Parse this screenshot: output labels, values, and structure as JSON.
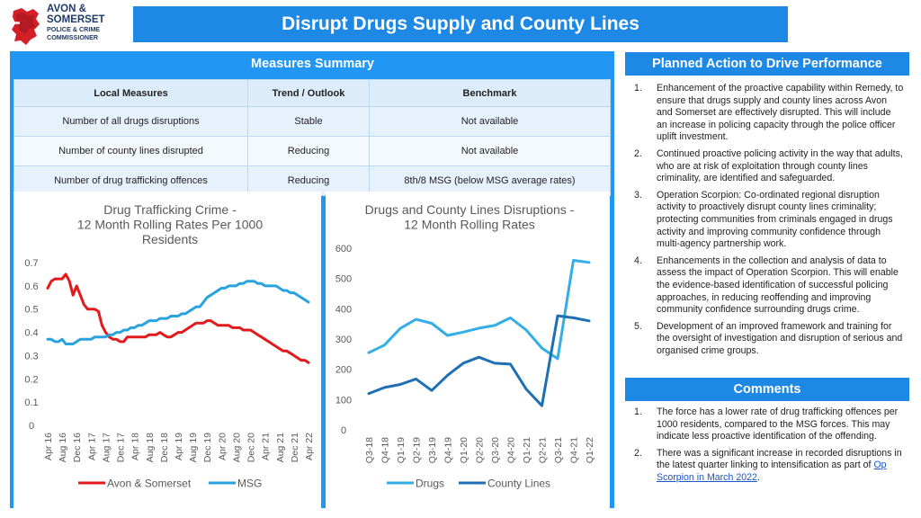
{
  "logo": {
    "line1": "AVON &",
    "line2": "SOMERSET",
    "line3": "POLICE & CRIME",
    "line4": "COMMISSIONER"
  },
  "title": "Disrupt Drugs Supply and County Lines",
  "measures": {
    "header": "Measures Summary",
    "columns": [
      "Local Measures",
      "Trend / Outlook",
      "Benchmark"
    ],
    "rows": [
      [
        "Number of all drugs disruptions",
        "Stable",
        "Not available"
      ],
      [
        "Number of county lines disrupted",
        "Reducing",
        "Not available"
      ],
      [
        "Number of drug trafficking offences",
        "Reducing",
        "8th/8 MSG (below MSG average rates)"
      ]
    ]
  },
  "planned": {
    "header": "Planned Action to Drive Performance",
    "items": [
      {
        "num": "1.",
        "text": "Enhancement of the proactive capability within Remedy, to ensure that drugs supply and county lines across Avon and Somerset are effectively disrupted. This will include an increase in policing capacity through the police officer uplift investment."
      },
      {
        "num": "2.",
        "text": "Continued proactive policing activity in the way that adults, who are at risk of exploitation through county lines criminality, are identified and safeguarded."
      },
      {
        "num": "3.",
        "text": "Operation Scorpion: Co-ordinated regional disruption activity to proactively disrupt county lines criminality; protecting communities from criminals engaged in drugs activity and improving community confidence through multi-agency partnership work."
      },
      {
        "num": "4.",
        "text": "Enhancements in the collection and analysis of data to assess the impact of Operation Scorpion. This will enable the evidence-based identification of successful policing approaches, in reducing reoffending and improving community confidence surrounding drugs crime."
      },
      {
        "num": "5.",
        "text": "Development of an improved framework and training for the oversight of investigation and disruption of serious and organised crime groups."
      }
    ]
  },
  "comments": {
    "header": "Comments",
    "item1": {
      "num": "1.",
      "text": "The force has a lower rate of drug trafficking offences per 1000 residents, compared to the MSG forces. This may indicate less proactive identification of the offending."
    },
    "item2": {
      "num": "2.",
      "text_before": "There was a significant increase in recorded disruptions in the latest quarter linking to intensification as part of ",
      "link": "Op Scorpion in March 2022",
      "text_after": "."
    }
  },
  "colors": {
    "title_bg": "#1e88e5",
    "panel_bg": "#2196f3",
    "avon_line": "#e31a1c",
    "msg_line": "#29a3e0",
    "drugs_line": "#33aee6",
    "county_line": "#1f6fb5"
  },
  "chart_data": [
    {
      "type": "line",
      "title": "Drug Trafficking Crime - 12 Month Rolling Rates Per 1000 Residents",
      "title_lines": [
        "Drug Trafficking Crime -",
        "12 Month Rolling Rates Per 1000",
        "Residents"
      ],
      "ylim": [
        0,
        0.7
      ],
      "yticks": [
        0,
        0.1,
        0.2,
        0.3,
        0.4,
        0.5,
        0.6,
        0.7
      ],
      "ytick_labels": [
        "0",
        "0.1",
        "0.2",
        "0.3",
        "0.4",
        "0.5",
        "0.6",
        "0.7"
      ],
      "xtick_labels": [
        "Apr 16",
        "Aug 16",
        "Dec 16",
        "Apr 17",
        "Aug 17",
        "Dec 17",
        "Apr 18",
        "Aug 18",
        "Dec 18",
        "Apr 19",
        "Aug 19",
        "Dec 19",
        "Apr 20",
        "Aug 20",
        "Dec 20",
        "Apr 21",
        "Aug 21",
        "Dec 21",
        "Apr 22"
      ],
      "x_months": 73,
      "legend_position": "bottom",
      "series": [
        {
          "name": "Avon & Somerset",
          "color": "#e31a1c",
          "values": [
            0.59,
            0.62,
            0.63,
            0.63,
            0.63,
            0.65,
            0.62,
            0.56,
            0.6,
            0.56,
            0.52,
            0.5,
            0.5,
            0.5,
            0.49,
            0.43,
            0.4,
            0.38,
            0.37,
            0.37,
            0.36,
            0.36,
            0.38,
            0.38,
            0.38,
            0.38,
            0.38,
            0.38,
            0.39,
            0.39,
            0.39,
            0.4,
            0.39,
            0.38,
            0.38,
            0.39,
            0.4,
            0.4,
            0.41,
            0.42,
            0.43,
            0.44,
            0.44,
            0.44,
            0.45,
            0.45,
            0.44,
            0.43,
            0.43,
            0.43,
            0.43,
            0.42,
            0.42,
            0.42,
            0.41,
            0.41,
            0.41,
            0.4,
            0.39,
            0.38,
            0.37,
            0.36,
            0.35,
            0.34,
            0.33,
            0.32,
            0.32,
            0.31,
            0.3,
            0.29,
            0.28,
            0.28,
            0.27
          ]
        },
        {
          "name": "MSG",
          "color": "#29a3e0",
          "values": [
            0.37,
            0.37,
            0.36,
            0.36,
            0.37,
            0.35,
            0.35,
            0.35,
            0.36,
            0.37,
            0.37,
            0.37,
            0.37,
            0.38,
            0.38,
            0.38,
            0.38,
            0.39,
            0.39,
            0.4,
            0.4,
            0.41,
            0.41,
            0.42,
            0.42,
            0.43,
            0.43,
            0.44,
            0.45,
            0.45,
            0.45,
            0.46,
            0.46,
            0.46,
            0.47,
            0.47,
            0.47,
            0.48,
            0.48,
            0.49,
            0.5,
            0.51,
            0.51,
            0.53,
            0.55,
            0.56,
            0.57,
            0.58,
            0.59,
            0.59,
            0.6,
            0.6,
            0.6,
            0.61,
            0.61,
            0.62,
            0.62,
            0.62,
            0.61,
            0.61,
            0.6,
            0.6,
            0.6,
            0.6,
            0.59,
            0.58,
            0.58,
            0.57,
            0.57,
            0.56,
            0.55,
            0.54,
            0.53
          ]
        }
      ]
    },
    {
      "type": "line",
      "title": "Drugs and County Lines Disruptions - 12 Month Rolling Rates",
      "title_lines": [
        "Drugs and County Lines Disruptions -",
        "12 Month Rolling Rates"
      ],
      "ylim": [
        0,
        600
      ],
      "yticks": [
        0,
        100,
        200,
        300,
        400,
        500,
        600
      ],
      "ytick_labels": [
        "0",
        "100",
        "200",
        "300",
        "400",
        "500",
        "600"
      ],
      "categories": [
        "Q3-18",
        "Q4-18",
        "Q1-19",
        "Q2-19",
        "Q3-19",
        "Q4-19",
        "Q1-20",
        "Q2-20",
        "Q3-20",
        "Q4-20",
        "Q1-21",
        "Q2-21",
        "Q3-21",
        "Q4-21",
        "Q1-22"
      ],
      "legend_position": "bottom",
      "series": [
        {
          "name": "Drugs",
          "color": "#33aee6",
          "values": [
            255,
            280,
            335,
            365,
            352,
            312,
            323,
            336,
            345,
            370,
            330,
            270,
            235,
            560,
            553
          ]
        },
        {
          "name": "County Lines",
          "color": "#1f6fb5",
          "values": [
            120,
            140,
            150,
            168,
            130,
            180,
            220,
            240,
            220,
            217,
            135,
            80,
            377,
            370,
            360
          ]
        }
      ]
    }
  ]
}
